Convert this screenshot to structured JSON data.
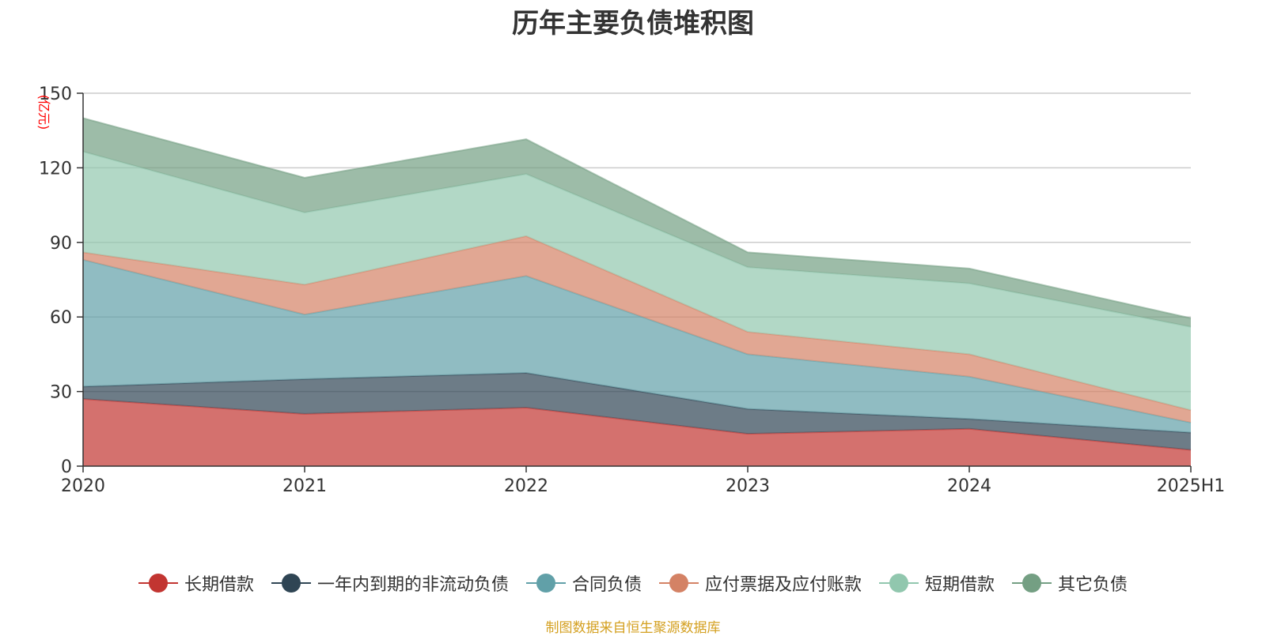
{
  "chart_data": {
    "type": "area",
    "stacked": true,
    "title": "历年主要负债堆积图",
    "unit": "(亿元)",
    "categories": [
      "2020",
      "2021",
      "2022",
      "2023",
      "2024",
      "2025H1"
    ],
    "ylim": [
      0,
      150
    ],
    "yticks": [
      0,
      30,
      60,
      90,
      120,
      150
    ],
    "grid": true,
    "legend_position": "bottom",
    "series": [
      {
        "name": "长期借款",
        "color": "#c23531",
        "values": [
          27,
          21,
          23.5,
          13,
          15,
          6.5
        ]
      },
      {
        "name": "一年内到期的非流动负债",
        "color": "#2f4554",
        "values": [
          5,
          14,
          14,
          10,
          4,
          7
        ]
      },
      {
        "name": "合同负债",
        "color": "#61a0a8",
        "values": [
          51,
          26,
          39,
          22,
          17,
          4
        ]
      },
      {
        "name": "应付票据及应付账款",
        "color": "#d48265",
        "values": [
          3,
          12,
          16,
          9,
          9,
          5
        ]
      },
      {
        "name": "短期借款",
        "color": "#91c7ae",
        "values": [
          40.5,
          29,
          25,
          26,
          28.5,
          33.5
        ]
      },
      {
        "name": "其它负债",
        "color": "#749f83",
        "values": [
          13.5,
          14,
          14,
          6,
          6,
          3.5
        ]
      }
    ]
  },
  "source_note": "制图数据来自恒生聚源数据库"
}
